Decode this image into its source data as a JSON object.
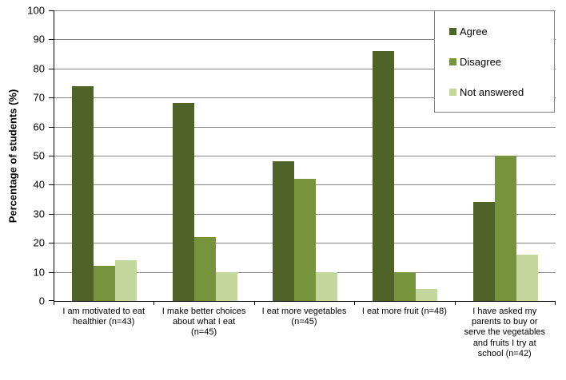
{
  "chart_data": {
    "type": "bar",
    "title": "",
    "xlabel": "",
    "ylabel": "Percentage of students (%)",
    "ylim": [
      0,
      100
    ],
    "ytick_step": 10,
    "yticks": [
      0,
      10,
      20,
      30,
      40,
      50,
      60,
      70,
      80,
      90,
      100
    ],
    "grid": true,
    "legend_position": "top-right",
    "categories": [
      "I am motivated to eat healthier (n=43)",
      "I make better choices about what I eat (n=45)",
      "I eat more vegetables (n=45)",
      "I eat more fruit (n=48)",
      "I have asked my parents to buy or serve the vegetables and fruits I try at school (n=42)"
    ],
    "series": [
      {
        "name": "Agree",
        "color": "#4F6228",
        "values": [
          74,
          68,
          48,
          86,
          34
        ]
      },
      {
        "name": "Disagree",
        "color": "#77933C",
        "values": [
          12,
          22,
          42,
          10,
          50
        ]
      },
      {
        "name": "Not answered",
        "color": "#C3D69B",
        "values": [
          14,
          10,
          10,
          4,
          16
        ]
      }
    ]
  },
  "colors": {
    "background": "#FFFFFF",
    "gridline": "#878787",
    "axis": "#000000",
    "legend_border": "#7F7F7F",
    "text": "#000000"
  }
}
